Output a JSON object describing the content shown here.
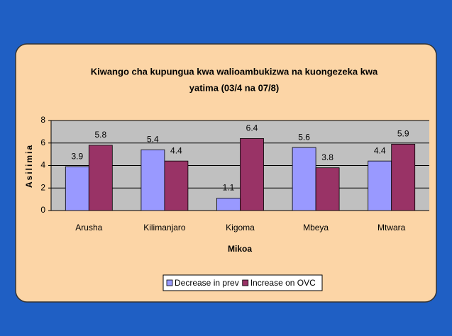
{
  "chart_data": {
    "type": "bar",
    "title": [
      "Kiwango cha kupungua kwa walioambukizwa na kuongezeka kwa",
      "yatima (03/4 na 07/8)"
    ],
    "xlabel": "Mikoa",
    "ylabel": "Asilimia",
    "categories": [
      "Arusha",
      "Kilimanjaro",
      "Kigoma",
      "Mbeya",
      "Mtwara"
    ],
    "series": [
      {
        "name": "Decrease in prev",
        "color": "#9999ff",
        "values": [
          3.9,
          5.4,
          1.1,
          5.6,
          4.4
        ]
      },
      {
        "name": "Increase on OVC",
        "color": "#993366",
        "values": [
          5.8,
          4.4,
          6.4,
          3.8,
          5.9
        ]
      }
    ],
    "ylim": [
      0,
      8
    ],
    "yticks": [
      0,
      2,
      4,
      6,
      8
    ],
    "grid": true,
    "legend": "bottom"
  }
}
